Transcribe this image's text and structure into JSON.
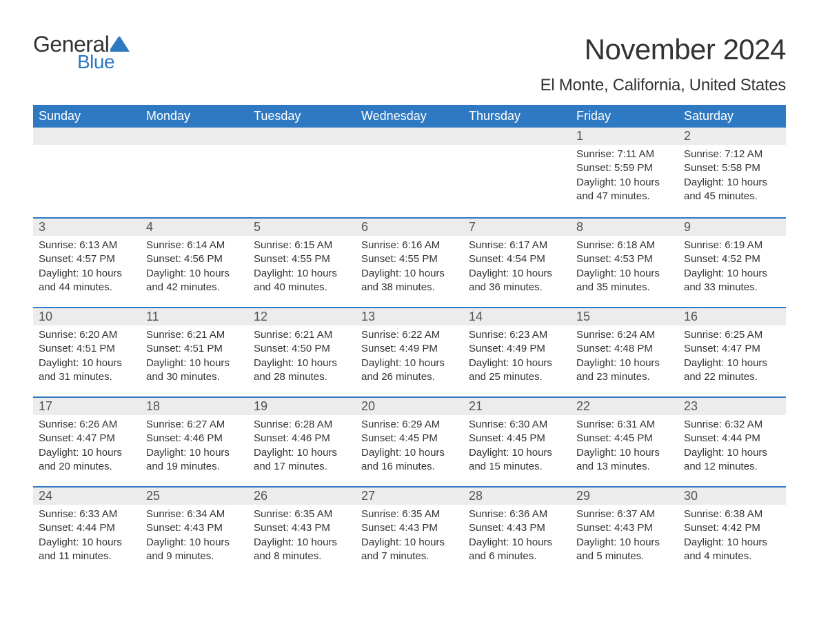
{
  "logo": {
    "general": "General",
    "blue": "Blue",
    "shape_color": "#2f79c2"
  },
  "title": "November 2024",
  "subtitle": "El Monte, California, United States",
  "colors": {
    "header_bg": "#2f79c2",
    "header_text": "#ffffff",
    "daynum_bg": "#ececec",
    "text": "#333333",
    "week_border": "#2f79c2"
  },
  "daysOfWeek": [
    "Sunday",
    "Monday",
    "Tuesday",
    "Wednesday",
    "Thursday",
    "Friday",
    "Saturday"
  ],
  "weeks": [
    [
      {
        "empty": true
      },
      {
        "empty": true
      },
      {
        "empty": true
      },
      {
        "empty": true
      },
      {
        "empty": true
      },
      {
        "num": "1",
        "sunrise": "Sunrise: 7:11 AM",
        "sunset": "Sunset: 5:59 PM",
        "daylight": "Daylight: 10 hours and 47 minutes."
      },
      {
        "num": "2",
        "sunrise": "Sunrise: 7:12 AM",
        "sunset": "Sunset: 5:58 PM",
        "daylight": "Daylight: 10 hours and 45 minutes."
      }
    ],
    [
      {
        "num": "3",
        "sunrise": "Sunrise: 6:13 AM",
        "sunset": "Sunset: 4:57 PM",
        "daylight": "Daylight: 10 hours and 44 minutes."
      },
      {
        "num": "4",
        "sunrise": "Sunrise: 6:14 AM",
        "sunset": "Sunset: 4:56 PM",
        "daylight": "Daylight: 10 hours and 42 minutes."
      },
      {
        "num": "5",
        "sunrise": "Sunrise: 6:15 AM",
        "sunset": "Sunset: 4:55 PM",
        "daylight": "Daylight: 10 hours and 40 minutes."
      },
      {
        "num": "6",
        "sunrise": "Sunrise: 6:16 AM",
        "sunset": "Sunset: 4:55 PM",
        "daylight": "Daylight: 10 hours and 38 minutes."
      },
      {
        "num": "7",
        "sunrise": "Sunrise: 6:17 AM",
        "sunset": "Sunset: 4:54 PM",
        "daylight": "Daylight: 10 hours and 36 minutes."
      },
      {
        "num": "8",
        "sunrise": "Sunrise: 6:18 AM",
        "sunset": "Sunset: 4:53 PM",
        "daylight": "Daylight: 10 hours and 35 minutes."
      },
      {
        "num": "9",
        "sunrise": "Sunrise: 6:19 AM",
        "sunset": "Sunset: 4:52 PM",
        "daylight": "Daylight: 10 hours and 33 minutes."
      }
    ],
    [
      {
        "num": "10",
        "sunrise": "Sunrise: 6:20 AM",
        "sunset": "Sunset: 4:51 PM",
        "daylight": "Daylight: 10 hours and 31 minutes."
      },
      {
        "num": "11",
        "sunrise": "Sunrise: 6:21 AM",
        "sunset": "Sunset: 4:51 PM",
        "daylight": "Daylight: 10 hours and 30 minutes."
      },
      {
        "num": "12",
        "sunrise": "Sunrise: 6:21 AM",
        "sunset": "Sunset: 4:50 PM",
        "daylight": "Daylight: 10 hours and 28 minutes."
      },
      {
        "num": "13",
        "sunrise": "Sunrise: 6:22 AM",
        "sunset": "Sunset: 4:49 PM",
        "daylight": "Daylight: 10 hours and 26 minutes."
      },
      {
        "num": "14",
        "sunrise": "Sunrise: 6:23 AM",
        "sunset": "Sunset: 4:49 PM",
        "daylight": "Daylight: 10 hours and 25 minutes."
      },
      {
        "num": "15",
        "sunrise": "Sunrise: 6:24 AM",
        "sunset": "Sunset: 4:48 PM",
        "daylight": "Daylight: 10 hours and 23 minutes."
      },
      {
        "num": "16",
        "sunrise": "Sunrise: 6:25 AM",
        "sunset": "Sunset: 4:47 PM",
        "daylight": "Daylight: 10 hours and 22 minutes."
      }
    ],
    [
      {
        "num": "17",
        "sunrise": "Sunrise: 6:26 AM",
        "sunset": "Sunset: 4:47 PM",
        "daylight": "Daylight: 10 hours and 20 minutes."
      },
      {
        "num": "18",
        "sunrise": "Sunrise: 6:27 AM",
        "sunset": "Sunset: 4:46 PM",
        "daylight": "Daylight: 10 hours and 19 minutes."
      },
      {
        "num": "19",
        "sunrise": "Sunrise: 6:28 AM",
        "sunset": "Sunset: 4:46 PM",
        "daylight": "Daylight: 10 hours and 17 minutes."
      },
      {
        "num": "20",
        "sunrise": "Sunrise: 6:29 AM",
        "sunset": "Sunset: 4:45 PM",
        "daylight": "Daylight: 10 hours and 16 minutes."
      },
      {
        "num": "21",
        "sunrise": "Sunrise: 6:30 AM",
        "sunset": "Sunset: 4:45 PM",
        "daylight": "Daylight: 10 hours and 15 minutes."
      },
      {
        "num": "22",
        "sunrise": "Sunrise: 6:31 AM",
        "sunset": "Sunset: 4:45 PM",
        "daylight": "Daylight: 10 hours and 13 minutes."
      },
      {
        "num": "23",
        "sunrise": "Sunrise: 6:32 AM",
        "sunset": "Sunset: 4:44 PM",
        "daylight": "Daylight: 10 hours and 12 minutes."
      }
    ],
    [
      {
        "num": "24",
        "sunrise": "Sunrise: 6:33 AM",
        "sunset": "Sunset: 4:44 PM",
        "daylight": "Daylight: 10 hours and 11 minutes."
      },
      {
        "num": "25",
        "sunrise": "Sunrise: 6:34 AM",
        "sunset": "Sunset: 4:43 PM",
        "daylight": "Daylight: 10 hours and 9 minutes."
      },
      {
        "num": "26",
        "sunrise": "Sunrise: 6:35 AM",
        "sunset": "Sunset: 4:43 PM",
        "daylight": "Daylight: 10 hours and 8 minutes."
      },
      {
        "num": "27",
        "sunrise": "Sunrise: 6:35 AM",
        "sunset": "Sunset: 4:43 PM",
        "daylight": "Daylight: 10 hours and 7 minutes."
      },
      {
        "num": "28",
        "sunrise": "Sunrise: 6:36 AM",
        "sunset": "Sunset: 4:43 PM",
        "daylight": "Daylight: 10 hours and 6 minutes."
      },
      {
        "num": "29",
        "sunrise": "Sunrise: 6:37 AM",
        "sunset": "Sunset: 4:43 PM",
        "daylight": "Daylight: 10 hours and 5 minutes."
      },
      {
        "num": "30",
        "sunrise": "Sunrise: 6:38 AM",
        "sunset": "Sunset: 4:42 PM",
        "daylight": "Daylight: 10 hours and 4 minutes."
      }
    ]
  ]
}
